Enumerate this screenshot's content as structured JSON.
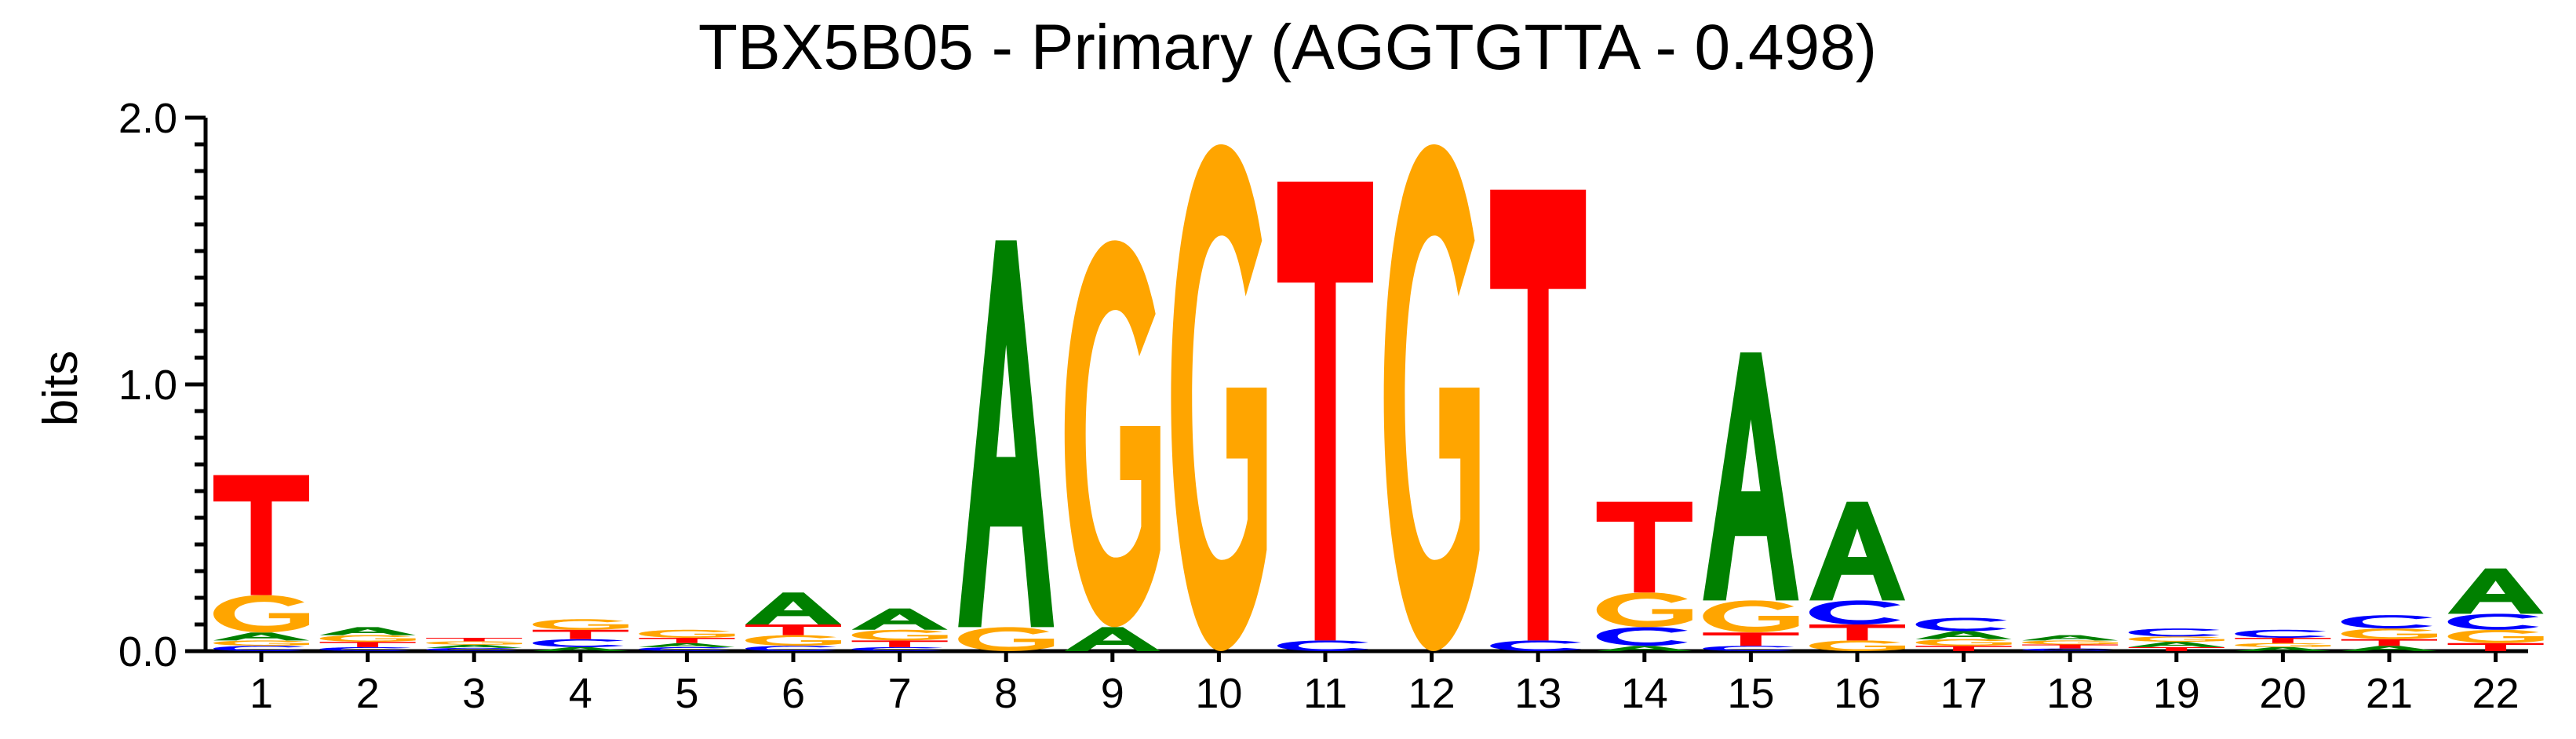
{
  "chart_data": {
    "type": "sequence-logo",
    "title": "TBX5B05 - Primary (AGGTGTTA - 0.498)",
    "ylabel": "bits",
    "ylim": [
      0,
      2
    ],
    "yticks": [
      "0.0",
      "1.0",
      "2.0"
    ],
    "colors": {
      "A": "#008000",
      "C": "#0000ff",
      "G": "#ffa500",
      "T": "#ff0000"
    },
    "positions": [
      {
        "label": "1",
        "stack": [
          [
            "C",
            0.02
          ],
          [
            "G",
            0.02
          ],
          [
            "A",
            0.03
          ],
          [
            "G",
            0.14
          ],
          [
            "T",
            0.45
          ]
        ]
      },
      {
        "label": "2",
        "stack": [
          [
            "C",
            0.015
          ],
          [
            "T",
            0.02
          ],
          [
            "G",
            0.025
          ],
          [
            "A",
            0.03
          ]
        ]
      },
      {
        "label": "3",
        "stack": [
          [
            "C",
            0.012
          ],
          [
            "A",
            0.012
          ],
          [
            "G",
            0.013
          ],
          [
            "T",
            0.013
          ]
        ]
      },
      {
        "label": "4",
        "stack": [
          [
            "A",
            0.015
          ],
          [
            "C",
            0.03
          ],
          [
            "T",
            0.035
          ],
          [
            "G",
            0.04
          ]
        ]
      },
      {
        "label": "5",
        "stack": [
          [
            "C",
            0.015
          ],
          [
            "A",
            0.015
          ],
          [
            "T",
            0.02
          ],
          [
            "G",
            0.03
          ]
        ]
      },
      {
        "label": "6",
        "stack": [
          [
            "C",
            0.02
          ],
          [
            "G",
            0.04
          ],
          [
            "T",
            0.04
          ],
          [
            "A",
            0.12
          ]
        ]
      },
      {
        "label": "7",
        "stack": [
          [
            "C",
            0.015
          ],
          [
            "T",
            0.025
          ],
          [
            "G",
            0.04
          ],
          [
            "A",
            0.08
          ]
        ]
      },
      {
        "label": "8",
        "stack": [
          [
            "G",
            0.09
          ],
          [
            "A",
            1.45
          ]
        ]
      },
      {
        "label": "9",
        "stack": [
          [
            "A",
            0.09
          ],
          [
            "G",
            1.45
          ]
        ]
      },
      {
        "label": "10",
        "stack": [
          [
            "G",
            1.9
          ]
        ]
      },
      {
        "label": "11",
        "stack": [
          [
            "C",
            0.04
          ],
          [
            "T",
            1.72
          ]
        ]
      },
      {
        "label": "12",
        "stack": [
          [
            "G",
            1.9
          ]
        ]
      },
      {
        "label": "13",
        "stack": [
          [
            "C",
            0.04
          ],
          [
            "T",
            1.69
          ]
        ]
      },
      {
        "label": "14",
        "stack": [
          [
            "A",
            0.02
          ],
          [
            "C",
            0.07
          ],
          [
            "G",
            0.13
          ],
          [
            "T",
            0.34
          ]
        ]
      },
      {
        "label": "15",
        "stack": [
          [
            "C",
            0.02
          ],
          [
            "T",
            0.05
          ],
          [
            "G",
            0.12
          ],
          [
            "A",
            0.93
          ]
        ]
      },
      {
        "label": "16",
        "stack": [
          [
            "G",
            0.04
          ],
          [
            "T",
            0.06
          ],
          [
            "C",
            0.09
          ],
          [
            "A",
            0.37
          ]
        ]
      },
      {
        "label": "17",
        "stack": [
          [
            "T",
            0.02
          ],
          [
            "G",
            0.025
          ],
          [
            "A",
            0.03
          ],
          [
            "C",
            0.05
          ]
        ]
      },
      {
        "label": "18",
        "stack": [
          [
            "C",
            0.01
          ],
          [
            "T",
            0.015
          ],
          [
            "G",
            0.015
          ],
          [
            "A",
            0.02
          ]
        ]
      },
      {
        "label": "19",
        "stack": [
          [
            "T",
            0.015
          ],
          [
            "A",
            0.02
          ],
          [
            "G",
            0.02
          ],
          [
            "C",
            0.03
          ]
        ]
      },
      {
        "label": "20",
        "stack": [
          [
            "A",
            0.015
          ],
          [
            "G",
            0.015
          ],
          [
            "T",
            0.02
          ],
          [
            "C",
            0.03
          ]
        ]
      },
      {
        "label": "21",
        "stack": [
          [
            "A",
            0.02
          ],
          [
            "T",
            0.025
          ],
          [
            "G",
            0.04
          ],
          [
            "C",
            0.05
          ]
        ]
      },
      {
        "label": "22",
        "stack": [
          [
            "T",
            0.03
          ],
          [
            "G",
            0.05
          ],
          [
            "C",
            0.06
          ],
          [
            "A",
            0.17
          ]
        ]
      }
    ]
  }
}
